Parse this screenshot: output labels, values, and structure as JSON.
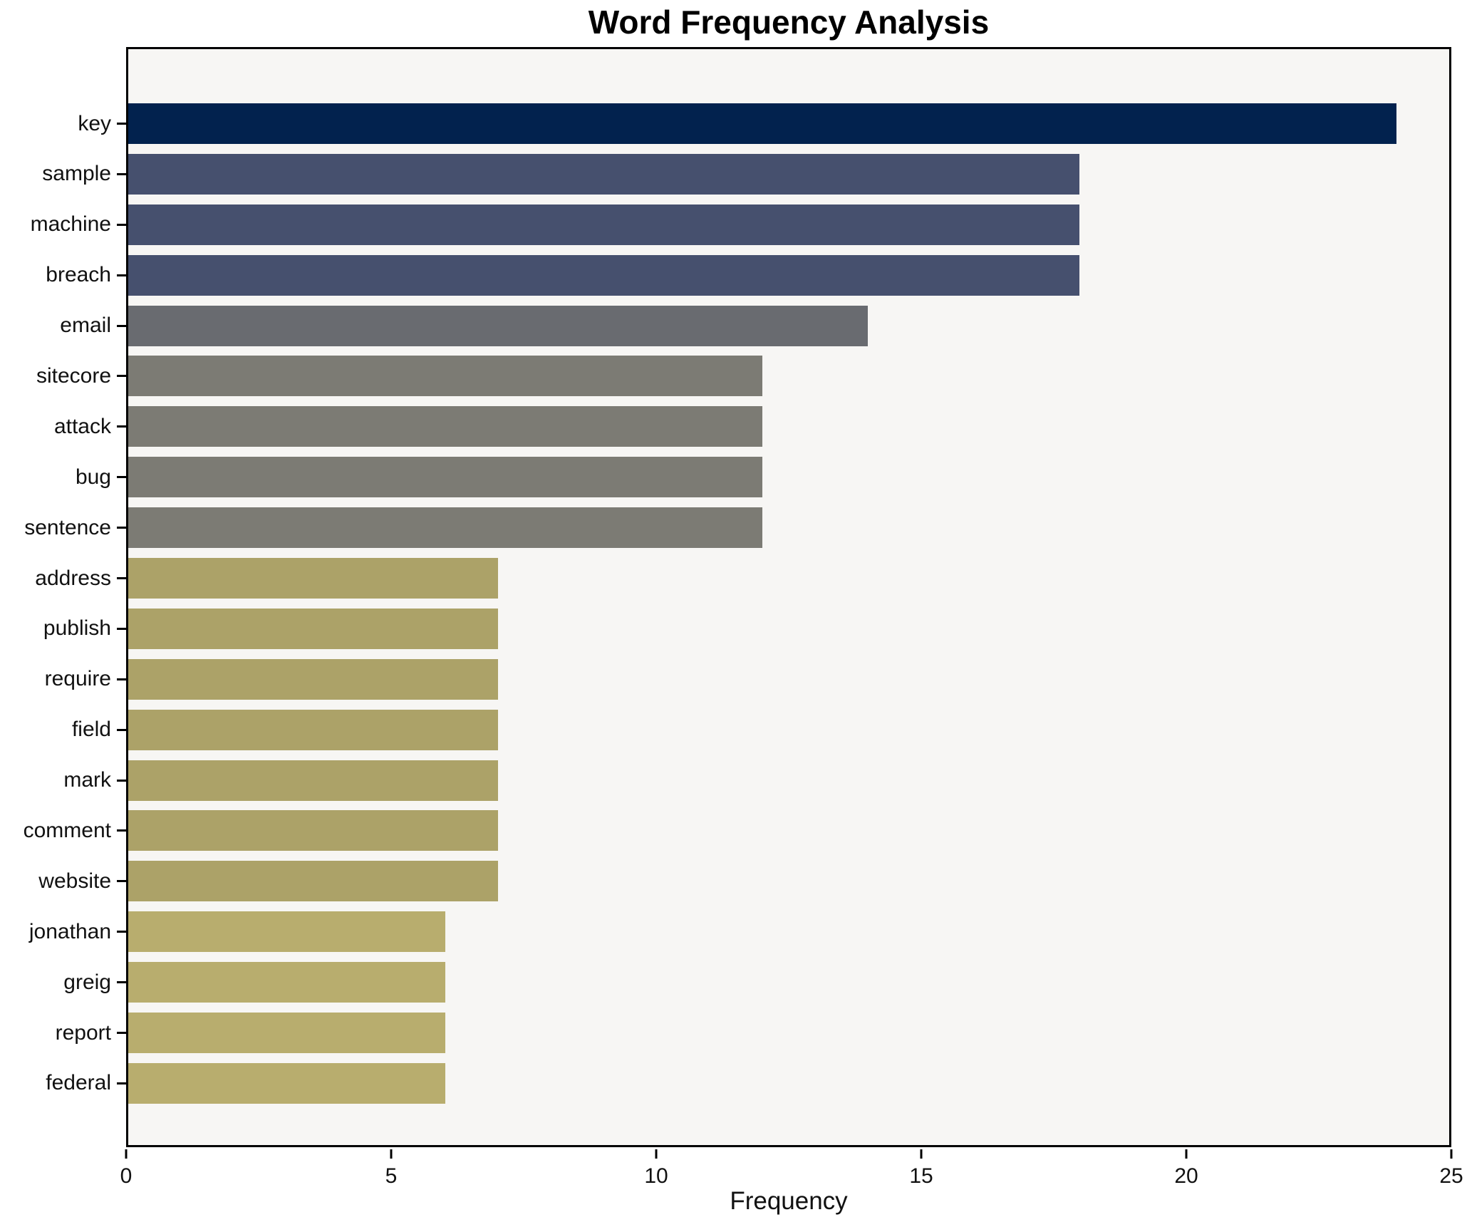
{
  "title": "Word Frequency Analysis",
  "chart_data": {
    "type": "bar",
    "orientation": "horizontal",
    "title": "Word Frequency Analysis",
    "xlabel": "Frequency",
    "ylabel": "",
    "xlim": [
      0,
      25
    ],
    "xticks": [
      0,
      5,
      10,
      15,
      20,
      25
    ],
    "grid": false,
    "legend": "none",
    "categories": [
      "key",
      "sample",
      "machine",
      "breach",
      "email",
      "sitecore",
      "attack",
      "bug",
      "sentence",
      "address",
      "publish",
      "require",
      "field",
      "mark",
      "comment",
      "website",
      "jonathan",
      "greig",
      "report",
      "federal"
    ],
    "values": [
      24,
      18,
      18,
      18,
      14,
      12,
      12,
      12,
      12,
      7,
      7,
      7,
      7,
      7,
      7,
      7,
      6,
      6,
      6,
      6
    ],
    "bar_colors": [
      "#02224e",
      "#46506e",
      "#46506e",
      "#46506e",
      "#696b70",
      "#7c7b74",
      "#7c7b74",
      "#7c7b74",
      "#7c7b74",
      "#aca268",
      "#aca268",
      "#aca268",
      "#aca268",
      "#aca268",
      "#aca268",
      "#aca268",
      "#b8ad6e",
      "#b8ad6e",
      "#b8ad6e",
      "#b8ad6e"
    ],
    "plot_background": "#f7f6f4",
    "figure_background": "#ffffff",
    "axis_color": "#000000"
  }
}
